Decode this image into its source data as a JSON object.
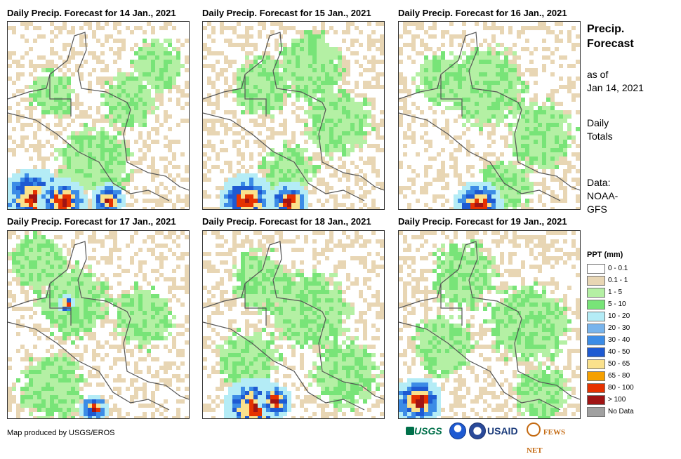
{
  "panels": [
    {
      "title": "Daily Precip. Forecast for 14 Jan., 2021"
    },
    {
      "title": "Daily Precip. Forecast for 15 Jan., 2021"
    },
    {
      "title": "Daily Precip. Forecast for 16 Jan., 2021"
    },
    {
      "title": "Daily Precip. Forecast for 17 Jan., 2021"
    },
    {
      "title": "Daily Precip. Forecast for 18 Jan., 2021"
    },
    {
      "title": "Daily Precip. Forecast for 19 Jan., 2021"
    }
  ],
  "side": {
    "title_line1": "Precip.",
    "title_line2": "Forecast",
    "asof_line1": "as of",
    "asof_line2": "Jan 14, 2021",
    "daily_line1": "Daily",
    "daily_line2": "Totals",
    "data_line1": "Data:",
    "data_line2": "NOAA-",
    "data_line3": "GFS"
  },
  "legend": {
    "title": "PPT (mm)",
    "items": [
      {
        "label": "0 - 0.1",
        "color": "#ffffff"
      },
      {
        "label": "0.1 - 1",
        "color": "#e8d6b4"
      },
      {
        "label": "1 - 5",
        "color": "#b4f0a4"
      },
      {
        "label": "5 - 10",
        "color": "#78e478"
      },
      {
        "label": "10 - 20",
        "color": "#b4ecf6"
      },
      {
        "label": "20 - 30",
        "color": "#78b4ec"
      },
      {
        "label": "30 - 40",
        "color": "#3c8ce6"
      },
      {
        "label": "40 - 50",
        "color": "#1e5ad2"
      },
      {
        "label": "50 - 65",
        "color": "#fae18c"
      },
      {
        "label": "65 - 80",
        "color": "#f5a000"
      },
      {
        "label": "80 - 100",
        "color": "#e63200"
      },
      {
        "label": "> 100",
        "color": "#a01414"
      },
      {
        "label": "No Data",
        "color": "#a0a0a0"
      }
    ]
  },
  "footer": {
    "credit": "Map produced by USGS/EROS"
  },
  "logos": {
    "usgs": "USGS",
    "usaid": "USAID",
    "fewsnet": "FEWS NET"
  }
}
